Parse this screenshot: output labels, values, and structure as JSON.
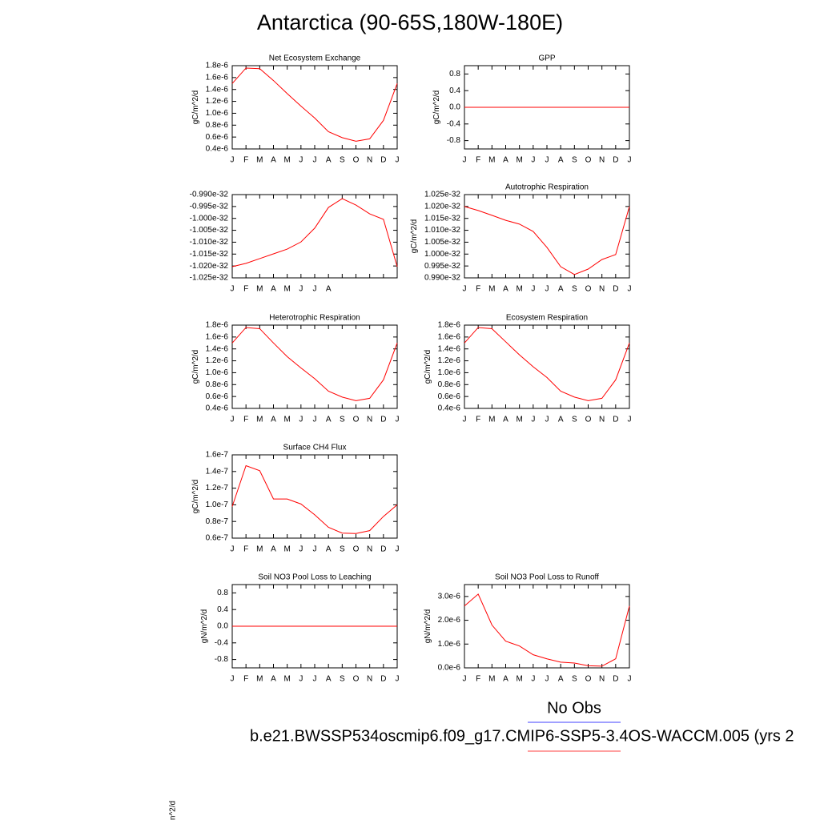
{
  "title": "Antarctica (90-65S,180W-180E)",
  "chart_data": [
    {
      "type": "line",
      "title": "Net Ecosystem Exchange",
      "y_label": "gC/m^2/d",
      "categories": [
        "J",
        "F",
        "M",
        "A",
        "M",
        "J",
        "J",
        "A",
        "S",
        "O",
        "N",
        "D",
        "J"
      ],
      "values": [
        1.5e-06,
        1.76e-06,
        1.75e-06,
        1.55e-06,
        1.33e-06,
        1.12e-06,
        9.2e-07,
        6.9e-07,
        5.9e-07,
        5.3e-07,
        5.7e-07,
        8.8e-07,
        1.5e-06
      ],
      "color": "#ff0000",
      "ylim": [
        4e-07,
        1.8e-06
      ],
      "yticks": [
        {
          "value": 4e-07,
          "label": "0.4e-6"
        },
        {
          "value": 6e-07,
          "label": "0.6e-6"
        },
        {
          "value": 8e-07,
          "label": "0.8e-6"
        },
        {
          "value": 1e-06,
          "label": "1.0e-6"
        },
        {
          "value": 1.2e-06,
          "label": "1.2e-6"
        },
        {
          "value": 1.4e-06,
          "label": "1.4e-6"
        },
        {
          "value": 1.6e-06,
          "label": "1.6e-6"
        },
        {
          "value": 1.8e-06,
          "label": "1.8e-6"
        }
      ]
    },
    {
      "type": "line",
      "title": "GPP",
      "y_label": "gC/m^2/d",
      "categories": [
        "J",
        "F",
        "M",
        "A",
        "M",
        "J",
        "J",
        "A",
        "S",
        "O",
        "N",
        "D",
        "J"
      ],
      "values": [
        0,
        0,
        0,
        0,
        0,
        0,
        0,
        0,
        0,
        0,
        0,
        0,
        0
      ],
      "color": "#ff0000",
      "ylim": [
        -1,
        1
      ],
      "yticks": [
        -0.8,
        -0.4,
        {
          "value": 0,
          "label": "0.0"
        },
        0.4,
        0.8
      ]
    },
    {
      "type": "line",
      "categories": [
        "J",
        "F",
        "M",
        "A",
        "M",
        "J",
        "J",
        "A",
        null,
        null,
        null,
        null,
        null
      ],
      "values": [
        -1.0203e-32,
        -1.0189e-32,
        -1.0169e-32,
        -1.0149e-32,
        -1.0129e-32,
        -1.0099e-32,
        -1.0041e-32,
        -9.954e-33,
        -9.917e-33,
        -9.944e-33,
        -9.981e-33,
        -1.0004e-32,
        -1.0203e-32
      ],
      "color": "#ff0000",
      "ylim": [
        -1.025e-32,
        -9.9e-33
      ],
      "yticks": [
        {
          "value": -1.025e-32,
          "label": "-1.025e-32"
        },
        {
          "value": -1.02e-32,
          "label": "-1.020e-32"
        },
        {
          "value": -1.015e-32,
          "label": "-1.015e-32"
        },
        {
          "value": -1.01e-32,
          "label": "-1.010e-32"
        },
        {
          "value": -1.005e-32,
          "label": "-1.005e-32"
        },
        {
          "value": -1e-32,
          "label": "-1.000e-32"
        },
        {
          "value": -9.95e-33,
          "label": "-0.995e-32"
        },
        {
          "value": -9.9e-33,
          "label": "-0.990e-32"
        }
      ]
    },
    {
      "type": "line",
      "title": "Autotrophic Respiration",
      "y_label": "gC/m^2/d",
      "categories": [
        "J",
        "F",
        "M",
        "A",
        "M",
        "J",
        "J",
        "A",
        "S",
        "O",
        "N",
        "D",
        "J"
      ],
      "values": [
        1.02e-32,
        1.0183e-32,
        1.0163e-32,
        1.0142e-32,
        1.0126e-32,
        1.0095e-32,
        1.0028e-32,
        9.947e-33,
        9.914e-33,
        9.937e-33,
        9.977e-33,
        9.998e-33,
        1.02e-32
      ],
      "color": "#ff0000",
      "ylim": [
        9.9e-33,
        1.025e-32
      ],
      "yticks": [
        {
          "value": 9.9e-33,
          "label": "0.990e-32"
        },
        {
          "value": 9.95e-33,
          "label": "0.995e-32"
        },
        {
          "value": 1e-32,
          "label": "1.000e-32"
        },
        {
          "value": 1.005e-32,
          "label": "1.005e-32"
        },
        {
          "value": 1.01e-32,
          "label": "1.010e-32"
        },
        {
          "value": 1.015e-32,
          "label": "1.015e-32"
        },
        {
          "value": 1.02e-32,
          "label": "1.020e-32"
        },
        {
          "value": 1.025e-32,
          "label": "1.025e-32"
        }
      ]
    },
    {
      "type": "line",
      "title": "Heterotrophic Respiration",
      "y_label": "gC/m^2/d",
      "categories": [
        "J",
        "F",
        "M",
        "A",
        "M",
        "J",
        "J",
        "A",
        "S",
        "O",
        "N",
        "D",
        "J"
      ],
      "values": [
        1.5e-06,
        1.76e-06,
        1.74e-06,
        1.5e-06,
        1.27e-06,
        1.08e-06,
        9e-07,
        6.9e-07,
        5.9e-07,
        5.3e-07,
        5.7e-07,
        8.8e-07,
        1.5e-06
      ],
      "color": "#ff0000",
      "ylim": [
        4e-07,
        1.8e-06
      ],
      "yticks": [
        {
          "value": 4e-07,
          "label": "0.4e-6"
        },
        {
          "value": 6e-07,
          "label": "0.6e-6"
        },
        {
          "value": 8e-07,
          "label": "0.8e-6"
        },
        {
          "value": 1e-06,
          "label": "1.0e-6"
        },
        {
          "value": 1.2e-06,
          "label": "1.2e-6"
        },
        {
          "value": 1.4e-06,
          "label": "1.4e-6"
        },
        {
          "value": 1.6e-06,
          "label": "1.6e-6"
        },
        {
          "value": 1.8e-06,
          "label": "1.8e-6"
        }
      ]
    },
    {
      "type": "line",
      "title": "Ecosystem Respiration",
      "y_label": "gC/m^2/d",
      "categories": [
        "J",
        "F",
        "M",
        "A",
        "M",
        "J",
        "J",
        "A",
        "S",
        "O",
        "N",
        "D",
        "J"
      ],
      "values": [
        1.5e-06,
        1.76e-06,
        1.74e-06,
        1.52e-06,
        1.3e-06,
        1.1e-06,
        9.2e-07,
        6.9e-07,
        5.9e-07,
        5.3e-07,
        5.7e-07,
        8.8e-07,
        1.5e-06
      ],
      "color": "#ff0000",
      "ylim": [
        4e-07,
        1.8e-06
      ],
      "yticks": [
        {
          "value": 4e-07,
          "label": "0.4e-6"
        },
        {
          "value": 6e-07,
          "label": "0.6e-6"
        },
        {
          "value": 8e-07,
          "label": "0.8e-6"
        },
        {
          "value": 1e-06,
          "label": "1.0e-6"
        },
        {
          "value": 1.2e-06,
          "label": "1.2e-6"
        },
        {
          "value": 1.4e-06,
          "label": "1.4e-6"
        },
        {
          "value": 1.6e-06,
          "label": "1.6e-6"
        },
        {
          "value": 1.8e-06,
          "label": "1.8e-6"
        }
      ]
    },
    {
      "type": "line",
      "title": "Surface CH4 Flux",
      "y_label": "gC/m^2/d",
      "categories": [
        "J",
        "F",
        "M",
        "A",
        "M",
        "J",
        "J",
        "A",
        "S",
        "O",
        "N",
        "D",
        "J"
      ],
      "values": [
        9.8e-08,
        1.47e-07,
        1.41e-07,
        1.07e-07,
        1.07e-07,
        1.01e-07,
        8.8e-08,
        7.3e-08,
        6.6e-08,
        6.55e-08,
        6.9e-08,
        8.6e-08,
        1e-07
      ],
      "color": "#ff0000",
      "ylim": [
        6e-08,
        1.6e-07
      ],
      "yticks": [
        {
          "value": 6e-08,
          "label": "0.6e-7"
        },
        {
          "value": 8e-08,
          "label": "0.8e-7"
        },
        {
          "value": 1e-07,
          "label": "1.0e-7"
        },
        {
          "value": 1.2e-07,
          "label": "1.2e-7"
        },
        {
          "value": 1.4e-07,
          "label": "1.4e-7"
        },
        {
          "value": 1.6e-07,
          "label": "1.6e-7"
        }
      ]
    },
    {
      "type": "line",
      "title": "Soil NO3 Pool Loss to Leaching",
      "y_label": "gN/m^2/d",
      "categories": [
        "J",
        "F",
        "M",
        "A",
        "M",
        "J",
        "J",
        "A",
        "S",
        "O",
        "N",
        "D",
        "J"
      ],
      "values": [
        0,
        0,
        0,
        0,
        0,
        0,
        0,
        0,
        0,
        0,
        0,
        0,
        0
      ],
      "color": "#ff0000",
      "ylim": [
        -1,
        1
      ],
      "yticks": [
        -0.8,
        -0.4,
        {
          "value": 0,
          "label": "0.0"
        },
        0.4,
        0.8
      ]
    },
    {
      "type": "line",
      "title": "Soil NO3 Pool Loss to Runoff",
      "y_label": "gN/m^2/d",
      "categories": [
        "J",
        "F",
        "M",
        "A",
        "M",
        "J",
        "J",
        "A",
        "S",
        "O",
        "N",
        "D",
        "J"
      ],
      "values": [
        2.6e-06,
        3.1e-06,
        1.8e-06,
        1.12e-06,
        9.2e-07,
        5.5e-07,
        3.8e-07,
        2.4e-07,
        2e-07,
        9e-08,
        7e-08,
        3.8e-07,
        2.6e-06
      ],
      "color": "#ff0000",
      "ylim": [
        0,
        3.5e-06
      ],
      "yticks": [
        {
          "value": 0,
          "label": "0.0e-6"
        },
        {
          "value": 1e-06,
          "label": "1.0e-6"
        },
        {
          "value": 2e-06,
          "label": "2.0e-6"
        },
        {
          "value": 3e-06,
          "label": "3.0e-6"
        }
      ]
    }
  ],
  "legend": [
    {
      "name": "No Obs",
      "color": "#8080ff"
    },
    {
      "name": "b.e21.BWSSP534oscmip6.f09_g17.CMIP6-SSP5-3.4OS-WACCM.005 (yrs 2",
      "color": "#ff8080"
    }
  ],
  "stray_label": "n^2/d"
}
